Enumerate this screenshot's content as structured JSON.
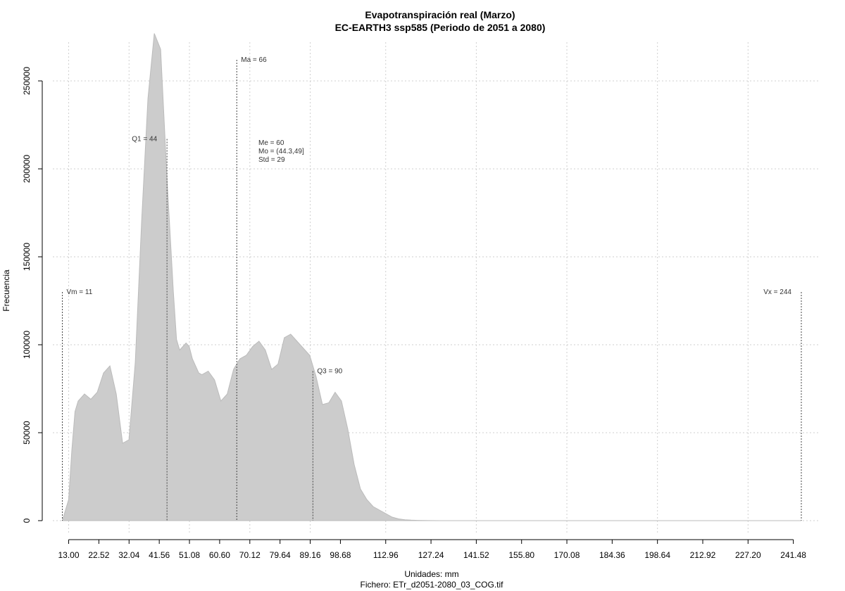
{
  "chart_data": {
    "type": "area",
    "title": "Evapotranspiración real (Marzo)",
    "subtitle": "EC-EARTH3 ssp585 (Periodo de 2051 a 2080)",
    "xlabel": "Unidades: mm",
    "file_label": "Fichero: ETr_d2051-2080_03_COG.tif",
    "ylabel": "Frecuencia",
    "xlim": [
      8,
      250
    ],
    "ylim": [
      -8000,
      272000
    ],
    "grid": true,
    "x_ticks": [
      "13.00",
      "22.52",
      "32.04",
      "41.56",
      "51.08",
      "60.60",
      "70.12",
      "79.64",
      "89.16",
      "98.68",
      "112.96",
      "127.24",
      "141.52",
      "155.80",
      "170.08",
      "184.36",
      "198.64",
      "212.92",
      "227.20",
      "241.48"
    ],
    "y_ticks": [
      0,
      50000,
      100000,
      150000,
      200000,
      250000
    ],
    "y_tick_labels": [
      "0",
      "50000",
      "100000",
      "150000",
      "200000",
      "250000"
    ],
    "series": [
      {
        "x": [
          11,
          13,
          14,
          15,
          16,
          18,
          20,
          22,
          24,
          26,
          28,
          30,
          32,
          34,
          36,
          38,
          40,
          42,
          44,
          46,
          47,
          48,
          50,
          51,
          52,
          54,
          55,
          57,
          59,
          61,
          63,
          65,
          67,
          69,
          71,
          73,
          75,
          77,
          79,
          81,
          83,
          85,
          87,
          89,
          91,
          93,
          95,
          96,
          97,
          99,
          101,
          103,
          105,
          107,
          109,
          111,
          113,
          115,
          117,
          119,
          121,
          123,
          125,
          127,
          130,
          133,
          136,
          139,
          142,
          145,
          150,
          155,
          160,
          170,
          180,
          200,
          220,
          240,
          244
        ],
        "y": [
          0,
          12000,
          40000,
          62000,
          68000,
          72000,
          69000,
          73000,
          84000,
          88000,
          72000,
          44000,
          46000,
          90000,
          170000,
          240000,
          277000,
          268000,
          195000,
          130000,
          103000,
          97000,
          101000,
          99000,
          92000,
          84000,
          83000,
          85000,
          80000,
          68000,
          72000,
          86000,
          92000,
          94000,
          99000,
          102000,
          97000,
          86000,
          89000,
          104000,
          106000,
          102000,
          98000,
          94000,
          82000,
          66000,
          67000,
          70000,
          73000,
          68000,
          52000,
          32000,
          18000,
          12000,
          8000,
          6000,
          4000,
          2000,
          1000,
          500,
          300,
          150,
          100,
          50,
          20,
          10,
          0,
          0,
          0,
          0,
          0,
          0,
          0,
          0,
          0,
          0,
          0,
          0,
          0
        ]
      }
    ],
    "vlines": [
      {
        "x": 11,
        "y_top": 130000,
        "label": "Vm = 11",
        "label_anchor": "start"
      },
      {
        "x": 44,
        "y_top": 217000,
        "label": "Q1 = 44",
        "label_anchor": "end"
      },
      {
        "x": 66,
        "y_top": 262000,
        "label": "Ma = 66",
        "label_anchor": "start"
      },
      {
        "x": 90,
        "y_top": 85000,
        "label": "Q3 = 90",
        "label_anchor": "start"
      },
      {
        "x": 244,
        "y_top": 130000,
        "label": "Vx = 244",
        "label_anchor": "end"
      }
    ],
    "stats_text": [
      "Me = 60",
      "Mo = (44.3,49]",
      "Std = 29"
    ]
  }
}
